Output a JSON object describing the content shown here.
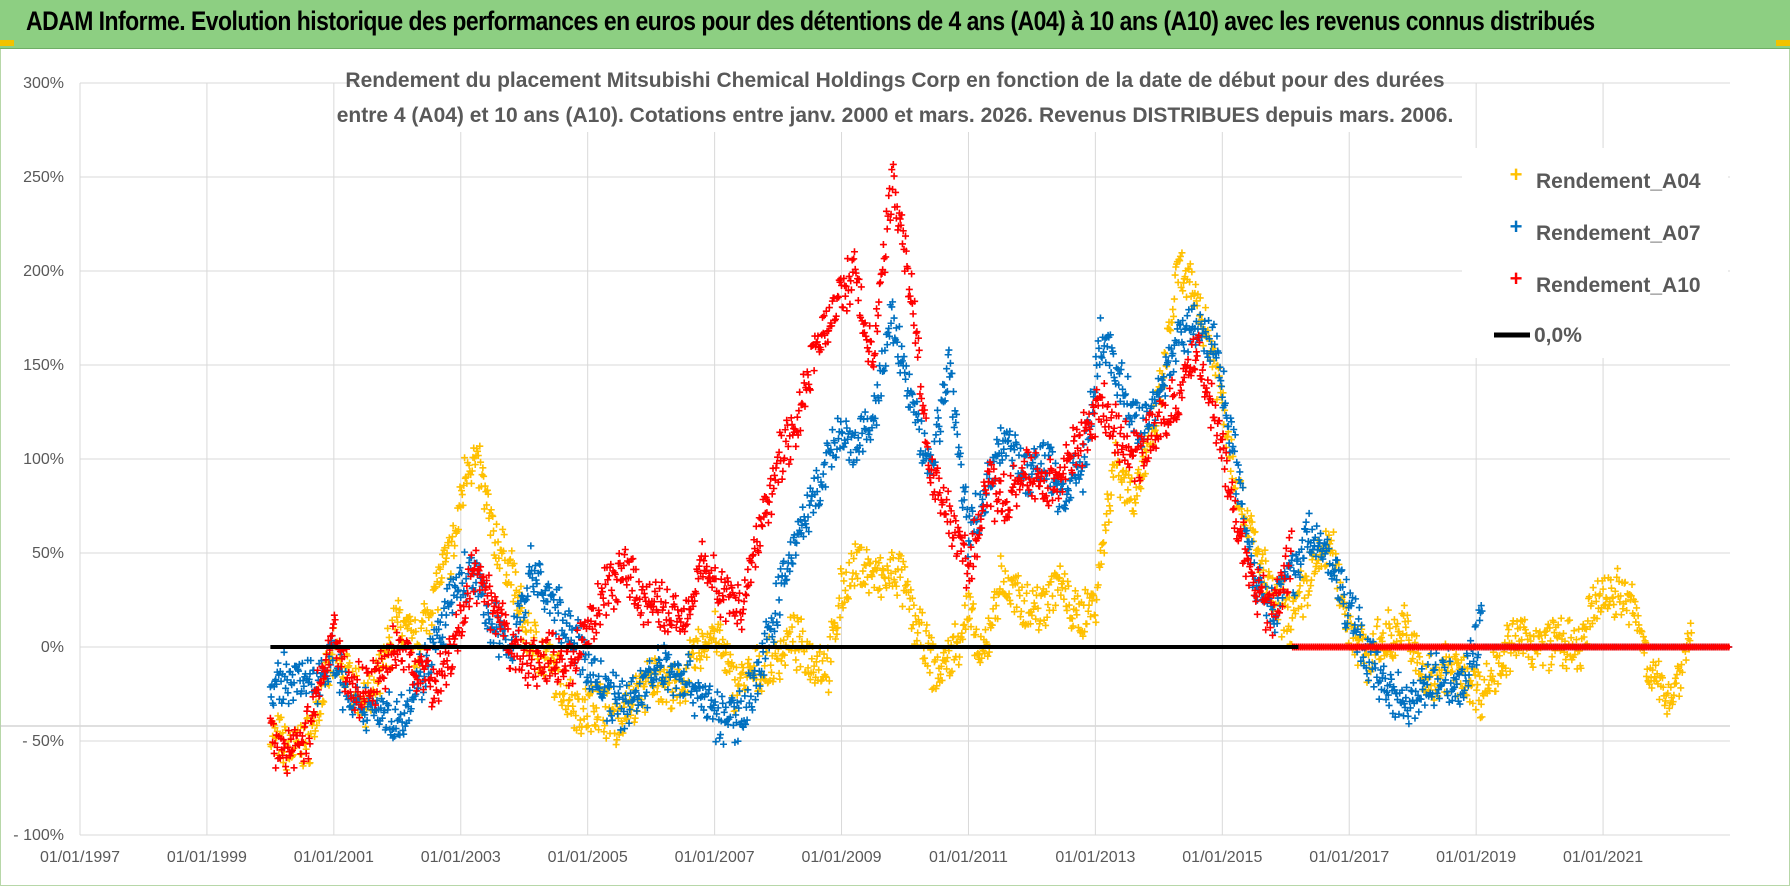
{
  "header": {
    "title": "ADAM Informe. Evolution historique des performances en euros pour des détentions de 4 ans (A04) à 10 ans (A10) avec les revenus connus distribués"
  },
  "chart_data": {
    "type": "scatter",
    "title_line1": "Rendement du placement Mitsubishi Chemical Holdings Corp en fonction de la date de début pour des durées",
    "title_line2": "entre 4 (A04) et 10 ans (A10).  Cotations entre janv. 2000 et mars. 2026. Revenus DISTRIBUES depuis mars. 2006.",
    "xlabel": "",
    "ylabel": "",
    "x_ticks": [
      "01/01/1997",
      "01/01/1999",
      "01/01/2001",
      "01/01/2003",
      "01/01/2005",
      "01/01/2007",
      "01/01/2009",
      "01/01/2011",
      "01/01/2013",
      "01/01/2015",
      "01/01/2017",
      "01/01/2019",
      "01/01/2021"
    ],
    "y_ticks": [
      "300%",
      "250%",
      "200%",
      "150%",
      "100%",
      "50%",
      "0%",
      "- 50%",
      "- 100%"
    ],
    "xlim": [
      1997.0,
      2023.0
    ],
    "ylim": [
      -100,
      300
    ],
    "colors": {
      "A04": "#ffc000",
      "A07": "#0070c0",
      "A10": "#ff0000",
      "zero": "#000000"
    },
    "legend": [
      "Rendement_A04",
      "Rendement_A07",
      "Rendement_A10",
      "0,0%"
    ],
    "series": [
      {
        "name": "Rendement_A04",
        "key": "A04",
        "x": [
          2000.0,
          2000.3,
          2000.6,
          2001.0,
          2001.3,
          2001.6,
          2002.0,
          2002.3,
          2002.6,
          2002.9,
          2003.1,
          2003.3,
          2003.5,
          2003.8,
          2004.0,
          2004.3,
          2004.6,
          2004.9,
          2005.2,
          2005.5,
          2005.8,
          2006.1,
          2006.4,
          2006.7,
          2007.0,
          2007.3,
          2007.6,
          2007.9,
          2008.2,
          2008.5,
          2008.8,
          2009.0,
          2009.3,
          2009.6,
          2009.9,
          2010.2,
          2010.5,
          2010.8,
          2011.0,
          2011.2,
          2011.5,
          2011.8,
          2012.1,
          2012.4,
          2012.7,
          2013.0,
          2013.3,
          2013.6,
          2013.9,
          2014.1,
          2014.3,
          2014.6,
          2014.9,
          2015.2,
          2015.5,
          2015.8,
          2016.1,
          2016.4,
          2016.7,
          2017.0,
          2017.3,
          2017.6,
          2017.9,
          2018.2,
          2018.5,
          2018.8,
          2019.1,
          2019.4,
          2019.7,
          2020.0,
          2020.3,
          2020.6,
          2020.9,
          2021.2,
          2021.5,
          2021.8,
          2022.1,
          2022.4
        ],
        "y": [
          -45,
          -55,
          -50,
          -5,
          -20,
          -30,
          15,
          0,
          30,
          55,
          100,
          95,
          60,
          40,
          10,
          -5,
          -20,
          -35,
          -30,
          -40,
          -25,
          -15,
          -25,
          -5,
          10,
          -20,
          -15,
          -10,
          5,
          -5,
          -10,
          30,
          45,
          35,
          40,
          10,
          -15,
          0,
          20,
          -10,
          35,
          25,
          20,
          35,
          15,
          25,
          100,
          80,
          110,
          150,
          200,
          185,
          150,
          90,
          55,
          25,
          15,
          40,
          55,
          10,
          -5,
          5,
          10,
          -20,
          -10,
          -15,
          -25,
          -5,
          5,
          0,
          5,
          -5,
          25,
          30,
          20,
          -20,
          -25,
          10
        ]
      },
      {
        "name": "Rendement_A07",
        "key": "A07",
        "x": [
          2000.0,
          2000.3,
          2000.6,
          2001.0,
          2001.3,
          2001.6,
          2002.0,
          2002.3,
          2002.6,
          2002.9,
          2003.2,
          2003.5,
          2003.8,
          2004.1,
          2004.4,
          2004.7,
          2005.0,
          2005.3,
          2005.6,
          2005.9,
          2006.2,
          2006.5,
          2006.8,
          2007.1,
          2007.4,
          2007.7,
          2008.0,
          2008.3,
          2008.6,
          2008.9,
          2009.2,
          2009.5,
          2009.8,
          2010.1,
          2010.4,
          2010.7,
          2011.0,
          2011.3,
          2011.6,
          2011.9,
          2012.2,
          2012.5,
          2012.8,
          2013.1,
          2013.4,
          2013.7,
          2014.0,
          2014.3,
          2014.6,
          2014.9,
          2015.2,
          2015.5,
          2015.8,
          2016.1,
          2016.4,
          2016.7,
          2017.0,
          2017.3,
          2017.6,
          2017.9,
          2018.2,
          2018.5,
          2018.8,
          2019.1
        ],
        "y": [
          -25,
          -15,
          -20,
          -5,
          -35,
          -30,
          -40,
          -20,
          0,
          30,
          40,
          10,
          0,
          40,
          25,
          10,
          -10,
          -25,
          -30,
          -20,
          -10,
          -15,
          -25,
          -40,
          -35,
          -15,
          25,
          60,
          80,
          110,
          105,
          120,
          175,
          130,
          95,
          150,
          60,
          85,
          115,
          90,
          100,
          80,
          95,
          165,
          140,
          115,
          135,
          165,
          170,
          160,
          100,
          40,
          20,
          40,
          60,
          45,
          20,
          -5,
          -20,
          -30,
          -20,
          -15,
          -20,
          15
        ]
      },
      {
        "name": "Rendement_A10",
        "key": "A10",
        "x": [
          2000.0,
          2000.3,
          2000.6,
          2001.0,
          2001.3,
          2001.6,
          2002.0,
          2002.3,
          2002.6,
          2002.9,
          2003.2,
          2003.5,
          2003.8,
          2004.1,
          2004.4,
          2004.7,
          2005.0,
          2005.3,
          2005.6,
          2005.9,
          2006.2,
          2006.5,
          2006.8,
          2007.1,
          2007.4,
          2007.7,
          2008.0,
          2008.3,
          2008.6,
          2008.9,
          2009.2,
          2009.5,
          2009.8,
          2010.1,
          2010.4,
          2010.7,
          2011.0,
          2011.3,
          2011.6,
          2011.9,
          2012.2,
          2012.5,
          2012.8,
          2013.1,
          2013.4,
          2013.7,
          2014.0,
          2014.3,
          2014.6,
          2014.9,
          2015.2,
          2015.5,
          2015.8,
          2016.1
        ],
        "y": [
          -50,
          -55,
          -45,
          10,
          -25,
          -20,
          0,
          -10,
          -20,
          0,
          40,
          20,
          0,
          -10,
          -5,
          -10,
          10,
          30,
          40,
          25,
          20,
          15,
          45,
          30,
          20,
          60,
          100,
          120,
          160,
          180,
          200,
          150,
          250,
          190,
          90,
          70,
          40,
          85,
          75,
          95,
          85,
          95,
          110,
          130,
          110,
          100,
          120,
          130,
          160,
          120,
          70,
          30,
          20,
          50
        ]
      }
    ]
  }
}
